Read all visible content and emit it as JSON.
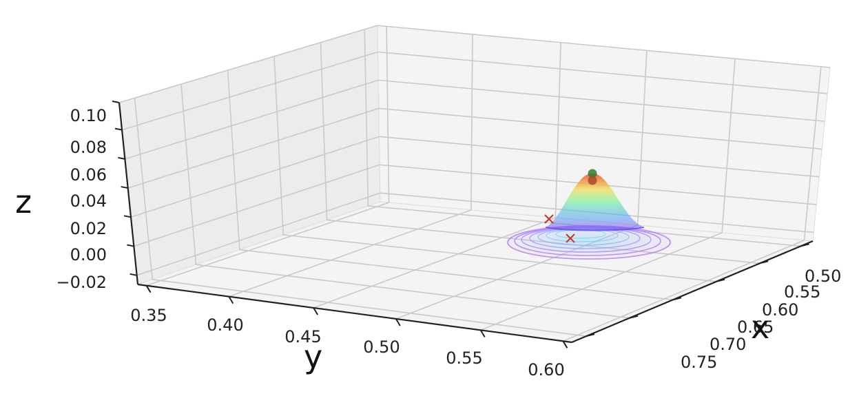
{
  "chart_data": {
    "type": "surface3d",
    "title": "",
    "xlabel": "x",
    "ylabel": "y",
    "zlabel": "z",
    "x_ticks": [
      "0.50",
      "0.55",
      "0.60",
      "0.65",
      "0.70",
      "0.75"
    ],
    "y_ticks": [
      "0.35",
      "0.40",
      "0.45",
      "0.50",
      "0.55",
      "0.60"
    ],
    "z_ticks": [
      "−0.02",
      "0.00",
      "0.02",
      "0.04",
      "0.06",
      "0.08",
      "0.10"
    ],
    "xlim": [
      0.48,
      0.77
    ],
    "ylim": [
      0.34,
      0.61
    ],
    "zlim": [
      -0.02,
      0.1
    ],
    "grid": true,
    "colormap": "rainbow",
    "surface": {
      "peak": {
        "x": 0.56,
        "y": 0.6,
        "z": 0.03
      },
      "sigma": 0.03,
      "contours_on_floor": true
    },
    "markers": [
      {
        "shape": "circle",
        "color": "#2e7d32",
        "x": 0.56,
        "y": 0.6,
        "z": 0.031
      },
      {
        "shape": "circle",
        "color": "#a84a2a",
        "x": 0.56,
        "y": 0.6,
        "z": 0.029
      },
      {
        "shape": "x",
        "color": "#c0392b",
        "x": 0.6,
        "y": 0.59,
        "z": -0.02
      },
      {
        "shape": "x",
        "color": "#c0392b",
        "x": 0.53,
        "y": 0.56,
        "z": -0.002
      }
    ]
  }
}
